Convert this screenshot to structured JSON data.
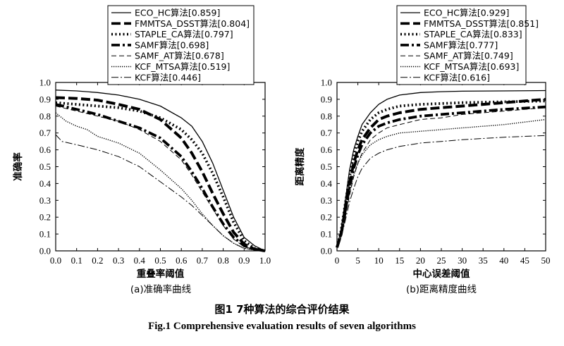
{
  "figure": {
    "caption_cn": "图1  7种算法的综合评价结果",
    "caption_en": "Fig.1  Comprehensive evaluation results of seven algorithms"
  },
  "chart_data": [
    {
      "type": "line",
      "subtitle": "(a)准确率曲线",
      "xlabel": "重叠率阈值",
      "ylabel": "准确率",
      "xlim": [
        0,
        1
      ],
      "ylim": [
        0,
        1
      ],
      "xticks": [
        "0.0",
        "0.1",
        "0.2",
        "0.3",
        "0.4",
        "0.5",
        "0.6",
        "0.7",
        "0.8",
        "0.9",
        "1.0"
      ],
      "xtick_values": [
        0,
        0.1,
        0.2,
        0.3,
        0.4,
        0.5,
        0.6,
        0.7,
        0.8,
        0.9,
        1.0
      ],
      "yticks": [
        "0.0",
        "0.1",
        "0.2",
        "0.3",
        "0.4",
        "0.5",
        "0.6",
        "0.7",
        "0.8",
        "0.9",
        "1.0"
      ],
      "ytick_values": [
        0,
        0.1,
        0.2,
        0.3,
        0.4,
        0.5,
        0.6,
        0.7,
        0.8,
        0.9,
        1.0
      ],
      "legend_position": "top-left",
      "series": [
        {
          "name": "ECO_HC算法[0.859]",
          "style": "solid",
          "x": [
            0,
            0.1,
            0.2,
            0.3,
            0.4,
            0.5,
            0.6,
            0.65,
            0.7,
            0.75,
            0.8,
            0.85,
            0.9,
            0.95,
            1.0
          ],
          "y": [
            0.955,
            0.95,
            0.94,
            0.925,
            0.9,
            0.86,
            0.79,
            0.74,
            0.65,
            0.52,
            0.36,
            0.2,
            0.08,
            0.03,
            0.0
          ]
        },
        {
          "name": "FMMTSA_DSST算法[0.804]",
          "style": "dash-heavy",
          "x": [
            0,
            0.1,
            0.2,
            0.3,
            0.4,
            0.5,
            0.6,
            0.65,
            0.7,
            0.75,
            0.8,
            0.85,
            0.9,
            0.95,
            1.0
          ],
          "y": [
            0.91,
            0.905,
            0.895,
            0.87,
            0.84,
            0.78,
            0.67,
            0.58,
            0.47,
            0.34,
            0.22,
            0.11,
            0.04,
            0.01,
            0.0
          ]
        },
        {
          "name": "STAPLE_CA算法[0.797]",
          "style": "dot-heavy",
          "x": [
            0,
            0.1,
            0.2,
            0.3,
            0.4,
            0.5,
            0.6,
            0.65,
            0.7,
            0.75,
            0.8,
            0.85,
            0.9,
            0.95,
            1.0
          ],
          "y": [
            0.88,
            0.87,
            0.86,
            0.85,
            0.83,
            0.79,
            0.72,
            0.66,
            0.58,
            0.46,
            0.32,
            0.17,
            0.06,
            0.015,
            0.0
          ]
        },
        {
          "name": "SAMF算法[0.698]",
          "style": "dashdot-heavy",
          "x": [
            0,
            0.1,
            0.2,
            0.3,
            0.4,
            0.5,
            0.6,
            0.65,
            0.7,
            0.75,
            0.8,
            0.85,
            0.9,
            0.95,
            1.0
          ],
          "y": [
            0.87,
            0.84,
            0.81,
            0.77,
            0.73,
            0.67,
            0.56,
            0.47,
            0.37,
            0.26,
            0.16,
            0.08,
            0.03,
            0.01,
            0.0
          ]
        },
        {
          "name": "SAMF_AT算法[0.678]",
          "style": "dash-thin",
          "x": [
            0,
            0.1,
            0.2,
            0.3,
            0.4,
            0.5,
            0.6,
            0.65,
            0.7,
            0.75,
            0.8,
            0.85,
            0.9,
            0.95,
            1.0
          ],
          "y": [
            0.86,
            0.83,
            0.8,
            0.77,
            0.72,
            0.65,
            0.54,
            0.45,
            0.35,
            0.25,
            0.15,
            0.07,
            0.025,
            0.008,
            0.0
          ]
        },
        {
          "name": "KCF_MTSA算法[0.519]",
          "style": "dot-thin",
          "x": [
            0,
            0.05,
            0.1,
            0.15,
            0.2,
            0.3,
            0.4,
            0.5,
            0.6,
            0.65,
            0.7,
            0.75,
            0.8,
            0.85,
            0.9,
            0.95,
            1.0
          ],
          "y": [
            0.82,
            0.77,
            0.74,
            0.72,
            0.68,
            0.64,
            0.58,
            0.48,
            0.37,
            0.3,
            0.22,
            0.15,
            0.09,
            0.045,
            0.015,
            0.005,
            0.0
          ]
        },
        {
          "name": "KCF算法[0.446]",
          "style": "dashdot-thin",
          "x": [
            0,
            0.03,
            0.1,
            0.2,
            0.3,
            0.4,
            0.5,
            0.6,
            0.65,
            0.7,
            0.75,
            0.8,
            0.85,
            0.9,
            0.95,
            1.0
          ],
          "y": [
            0.69,
            0.65,
            0.63,
            0.6,
            0.56,
            0.5,
            0.41,
            0.32,
            0.27,
            0.21,
            0.15,
            0.09,
            0.045,
            0.015,
            0.005,
            0.0
          ]
        }
      ]
    },
    {
      "type": "line",
      "subtitle": "(b)距离精度曲线",
      "xlabel": "中心误差阈值",
      "ylabel": "距离精度",
      "xlim": [
        0,
        50
      ],
      "ylim": [
        0,
        1
      ],
      "xticks": [
        "0",
        "5",
        "10",
        "15",
        "20",
        "25",
        "30",
        "35",
        "40",
        "45",
        "50"
      ],
      "xtick_values": [
        0,
        5,
        10,
        15,
        20,
        25,
        30,
        35,
        40,
        45,
        50
      ],
      "yticks": [
        "0.0",
        "0.1",
        "0.2",
        "0.3",
        "0.4",
        "0.5",
        "0.6",
        "0.7",
        "0.8",
        "0.9",
        "1.0"
      ],
      "ytick_values": [
        0,
        0.1,
        0.2,
        0.3,
        0.4,
        0.5,
        0.6,
        0.7,
        0.8,
        0.9,
        1.0
      ],
      "legend_position": "top-left",
      "series": [
        {
          "name": "ECO_HC算法[0.929]",
          "style": "solid",
          "x": [
            0,
            1,
            2,
            3,
            4,
            5,
            6,
            8,
            10,
            12,
            15,
            20,
            25,
            30,
            40,
            50
          ],
          "y": [
            0.02,
            0.13,
            0.3,
            0.48,
            0.6,
            0.68,
            0.75,
            0.82,
            0.87,
            0.9,
            0.925,
            0.94,
            0.945,
            0.948,
            0.95,
            0.952
          ]
        },
        {
          "name": "FMMTSA_DSST算法[0.851]",
          "style": "dash-heavy",
          "x": [
            0,
            1,
            2,
            3,
            4,
            5,
            6,
            8,
            10,
            12,
            15,
            20,
            25,
            30,
            40,
            50
          ],
          "y": [
            0.02,
            0.1,
            0.24,
            0.4,
            0.52,
            0.6,
            0.66,
            0.73,
            0.78,
            0.8,
            0.82,
            0.84,
            0.85,
            0.86,
            0.88,
            0.9
          ]
        },
        {
          "name": "STAPLE_CA算法[0.833]",
          "style": "dot-heavy",
          "x": [
            0,
            1,
            2,
            3,
            4,
            5,
            6,
            8,
            10,
            12,
            15,
            20,
            25,
            30,
            40,
            50
          ],
          "y": [
            0.02,
            0.12,
            0.28,
            0.44,
            0.57,
            0.65,
            0.71,
            0.78,
            0.82,
            0.84,
            0.86,
            0.87,
            0.875,
            0.88,
            0.885,
            0.89
          ]
        },
        {
          "name": "SAMF算法[0.777]",
          "style": "dashdot-heavy",
          "x": [
            0,
            1,
            2,
            3,
            4,
            5,
            6,
            8,
            10,
            12,
            15,
            20,
            25,
            30,
            40,
            50
          ],
          "y": [
            0.02,
            0.1,
            0.24,
            0.38,
            0.49,
            0.57,
            0.63,
            0.7,
            0.74,
            0.76,
            0.78,
            0.8,
            0.81,
            0.82,
            0.84,
            0.855
          ]
        },
        {
          "name": "SAMF_AT算法[0.749]",
          "style": "dash-thin",
          "x": [
            0,
            1,
            2,
            3,
            4,
            5,
            6,
            8,
            10,
            12,
            15,
            20,
            25,
            30,
            40,
            50
          ],
          "y": [
            0.02,
            0.09,
            0.2,
            0.33,
            0.44,
            0.52,
            0.58,
            0.66,
            0.7,
            0.73,
            0.75,
            0.78,
            0.79,
            0.81,
            0.83,
            0.85
          ]
        },
        {
          "name": "KCF_MTSA算法[0.693]",
          "style": "dot-thin",
          "x": [
            0,
            1,
            2,
            3,
            4,
            5,
            6,
            8,
            10,
            12,
            15,
            20,
            25,
            30,
            40,
            50
          ],
          "y": [
            0.02,
            0.1,
            0.22,
            0.35,
            0.45,
            0.52,
            0.57,
            0.63,
            0.66,
            0.68,
            0.7,
            0.71,
            0.72,
            0.73,
            0.75,
            0.78
          ]
        },
        {
          "name": "KCF算法[0.616]",
          "style": "dashdot-thin",
          "x": [
            0,
            1,
            2,
            3,
            4,
            5,
            6,
            8,
            10,
            12,
            15,
            20,
            25,
            30,
            40,
            50
          ],
          "y": [
            0.02,
            0.08,
            0.18,
            0.29,
            0.37,
            0.44,
            0.49,
            0.55,
            0.58,
            0.6,
            0.62,
            0.64,
            0.65,
            0.66,
            0.675,
            0.685
          ]
        }
      ]
    }
  ]
}
